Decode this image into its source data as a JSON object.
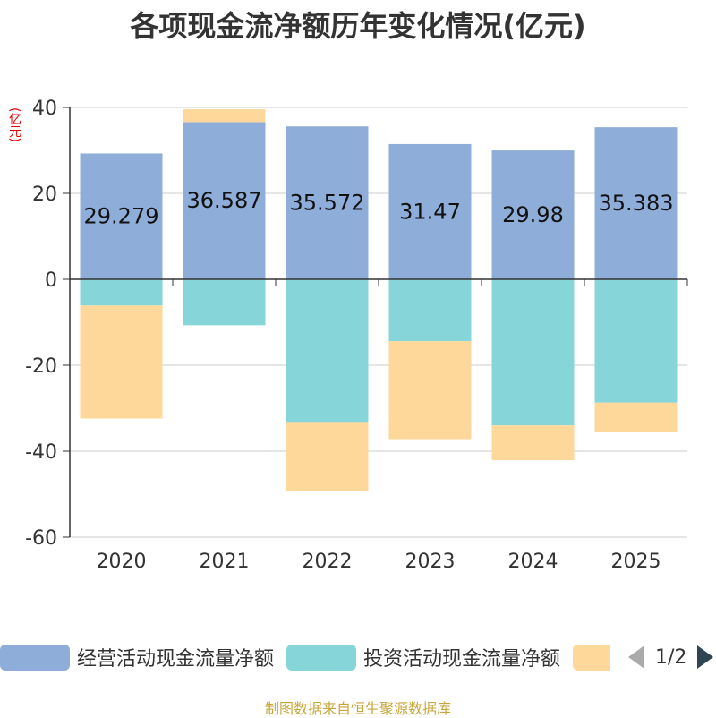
{
  "chart_data": {
    "type": "bar",
    "stacked": true,
    "title": "各项现金流净额历年变化情况(亿元)",
    "ylabel": "(亿元)",
    "categories": [
      "2020",
      "2021",
      "2022",
      "2023",
      "2024",
      "2025"
    ],
    "ylim": [
      -60,
      40
    ],
    "yticks": [
      40,
      20,
      0,
      -20,
      -40,
      -60
    ],
    "series": [
      {
        "name": "经营活动现金流量净额",
        "color": "#8eadd9",
        "values": [
          29.279,
          36.587,
          35.572,
          31.47,
          29.98,
          35.383
        ],
        "labels": [
          "29.279",
          "36.587",
          "35.572",
          "31.47",
          "29.98",
          "35.383"
        ]
      },
      {
        "name": "投资活动现金流量净额",
        "color": "#86d5d8",
        "values": [
          -6.1,
          -10.7,
          -33.2,
          -14.4,
          -34.0,
          -28.7
        ]
      },
      {
        "name": "",
        "color": "#fdd89a",
        "values": [
          -26.3,
          3.0,
          -16.0,
          -22.8,
          -8.1,
          -6.9
        ]
      }
    ]
  },
  "legend": {
    "item1": "经营活动现金流量净额",
    "item2": "投资活动现金流量净额",
    "pager": "1/2"
  },
  "source": "制图数据来自恒生聚源数据库"
}
